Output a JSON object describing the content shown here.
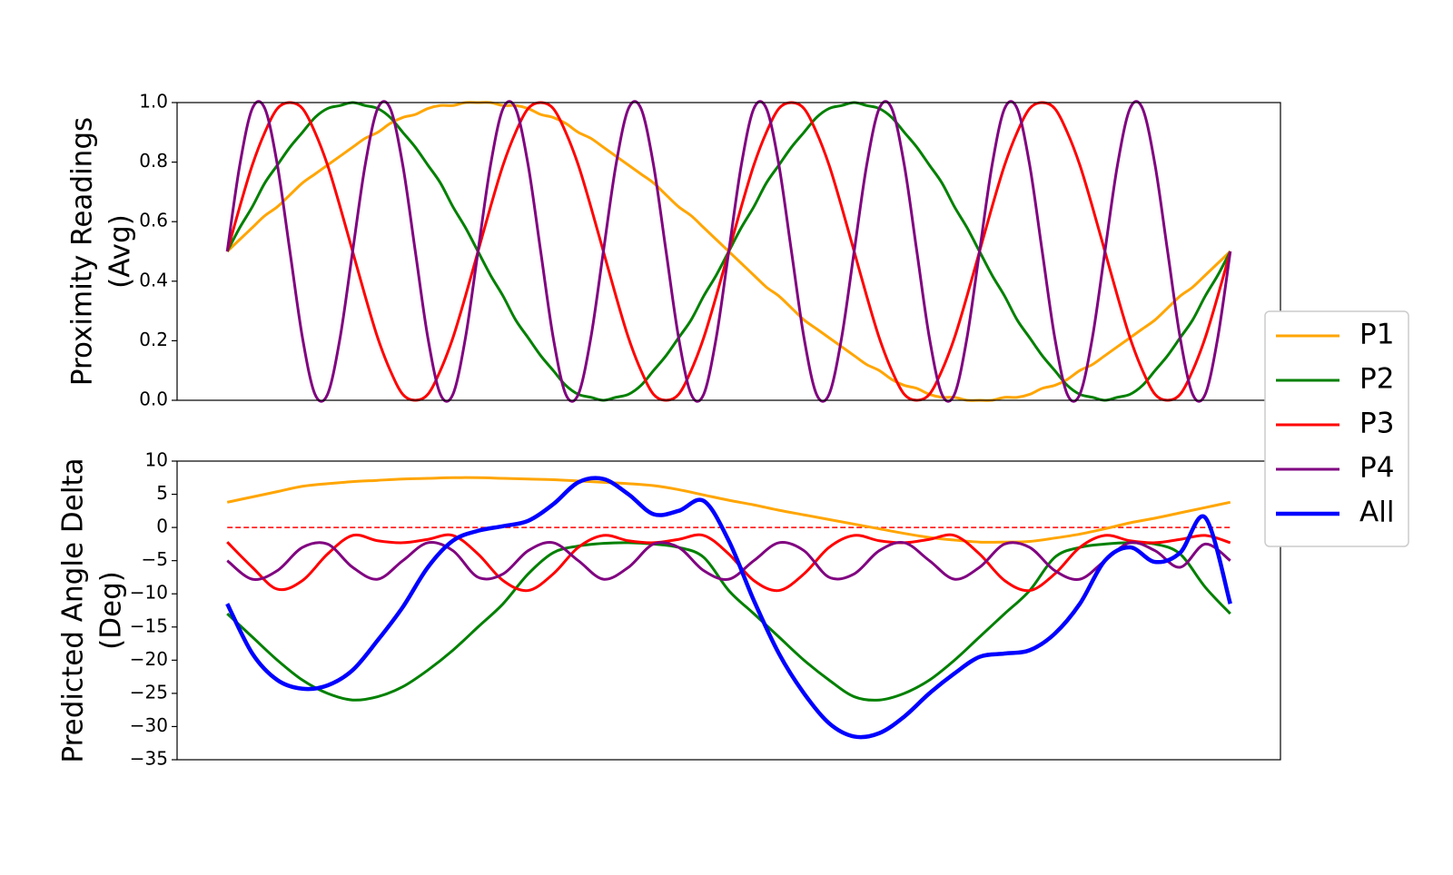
{
  "chart_data": [
    {
      "type": "line",
      "ylabel": [
        "Proximity Readings",
        "(Avg)"
      ],
      "x": [
        0,
        1,
        2,
        3,
        4,
        5,
        6,
        7,
        8,
        9,
        10,
        11,
        12,
        13,
        14,
        15,
        16,
        17,
        18,
        19,
        20,
        21,
        22,
        23,
        24,
        25,
        26,
        27,
        28,
        29,
        30,
        31,
        32,
        33,
        34,
        35,
        36,
        37,
        38,
        39,
        40,
        41,
        42,
        43,
        44,
        45,
        46,
        47,
        48,
        49,
        50,
        51,
        52,
        53,
        54,
        55,
        56,
        57,
        58,
        59,
        60,
        61,
        62,
        63,
        64,
        65,
        66,
        67,
        68,
        69,
        70,
        71,
        72,
        73,
        74,
        75,
        76,
        77,
        78,
        79,
        80
      ],
      "xlim": [
        -4,
        84
      ],
      "ylim": [
        0,
        1
      ],
      "yticks": [
        {
          "value": 0,
          "label": "0.0"
        },
        0.2,
        0.4,
        0.6,
        0.8,
        {
          "value": 1,
          "label": "1.0"
        }
      ],
      "series": [
        {
          "color": "#ffa500",
          "values": [
            0.5,
            0.54,
            0.58,
            0.62,
            0.65,
            0.69,
            0.73,
            0.76,
            0.79,
            0.82,
            0.85,
            0.88,
            0.9,
            0.93,
            0.95,
            0.96,
            0.98,
            0.99,
            0.99,
            1.0,
            1.0,
            1.0,
            0.99,
            0.99,
            0.98,
            0.96,
            0.95,
            0.93,
            0.9,
            0.88,
            0.85,
            0.82,
            0.79,
            0.76,
            0.73,
            0.69,
            0.65,
            0.62,
            0.58,
            0.54,
            0.5,
            0.46,
            0.42,
            0.38,
            0.35,
            0.31,
            0.27,
            0.24,
            0.21,
            0.18,
            0.15,
            0.12,
            0.1,
            0.07,
            0.05,
            0.04,
            0.02,
            0.01,
            0.01,
            0.0,
            0.0,
            0.0,
            0.01,
            0.01,
            0.02,
            0.04,
            0.05,
            0.07,
            0.1,
            0.12,
            0.15,
            0.18,
            0.21,
            0.24,
            0.27,
            0.31,
            0.35,
            0.38,
            0.42,
            0.46,
            0.5
          ]
        },
        {
          "color": "#008000",
          "values": [
            0.5,
            0.58,
            0.65,
            0.73,
            0.79,
            0.85,
            0.9,
            0.95,
            0.98,
            0.99,
            1.0,
            0.99,
            0.98,
            0.95,
            0.9,
            0.85,
            0.79,
            0.73,
            0.65,
            0.58,
            0.5,
            0.42,
            0.35,
            0.27,
            0.21,
            0.15,
            0.1,
            0.05,
            0.02,
            0.01,
            0.0,
            0.01,
            0.02,
            0.05,
            0.1,
            0.15,
            0.21,
            0.27,
            0.35,
            0.42,
            0.5,
            0.58,
            0.65,
            0.73,
            0.79,
            0.85,
            0.9,
            0.95,
            0.98,
            0.99,
            1.0,
            0.99,
            0.98,
            0.95,
            0.9,
            0.85,
            0.79,
            0.73,
            0.65,
            0.58,
            0.5,
            0.42,
            0.35,
            0.27,
            0.21,
            0.15,
            0.1,
            0.05,
            0.02,
            0.01,
            0.0,
            0.01,
            0.02,
            0.05,
            0.1,
            0.15,
            0.21,
            0.27,
            0.35,
            0.42,
            0.5
          ]
        },
        {
          "color": "#ff0000",
          "values": [
            0.5,
            0.65,
            0.79,
            0.9,
            0.98,
            1.0,
            0.98,
            0.9,
            0.79,
            0.65,
            0.5,
            0.35,
            0.21,
            0.1,
            0.02,
            0.0,
            0.02,
            0.1,
            0.21,
            0.35,
            0.5,
            0.65,
            0.79,
            0.9,
            0.98,
            1.0,
            0.98,
            0.9,
            0.79,
            0.65,
            0.5,
            0.35,
            0.21,
            0.1,
            0.02,
            0.0,
            0.02,
            0.1,
            0.21,
            0.35,
            0.5,
            0.65,
            0.79,
            0.9,
            0.98,
            1.0,
            0.98,
            0.9,
            0.79,
            0.65,
            0.5,
            0.35,
            0.21,
            0.1,
            0.02,
            0.0,
            0.02,
            0.1,
            0.21,
            0.35,
            0.5,
            0.65,
            0.79,
            0.9,
            0.98,
            1.0,
            0.98,
            0.9,
            0.79,
            0.65,
            0.5,
            0.35,
            0.21,
            0.1,
            0.02,
            0.0,
            0.02,
            0.1,
            0.21,
            0.35,
            0.5
          ]
        },
        {
          "color": "#800080",
          "values": [
            0.5,
            0.79,
            0.98,
            0.98,
            0.79,
            0.5,
            0.21,
            0.02,
            0.02,
            0.21,
            0.5,
            0.79,
            0.98,
            0.98,
            0.79,
            0.5,
            0.21,
            0.02,
            0.02,
            0.21,
            0.5,
            0.79,
            0.98,
            0.98,
            0.79,
            0.5,
            0.21,
            0.02,
            0.02,
            0.21,
            0.5,
            0.79,
            0.98,
            0.98,
            0.79,
            0.5,
            0.21,
            0.02,
            0.02,
            0.21,
            0.5,
            0.79,
            0.98,
            0.98,
            0.79,
            0.5,
            0.21,
            0.02,
            0.02,
            0.21,
            0.5,
            0.79,
            0.98,
            0.98,
            0.79,
            0.5,
            0.21,
            0.02,
            0.02,
            0.21,
            0.5,
            0.79,
            0.98,
            0.98,
            0.79,
            0.5,
            0.21,
            0.02,
            0.02,
            0.21,
            0.5,
            0.79,
            0.98,
            0.98,
            0.79,
            0.5,
            0.21,
            0.02,
            0.02,
            0.21,
            0.5
          ]
        }
      ]
    },
    {
      "type": "line",
      "ylabel": [
        "Predicted Angle Delta",
        "(Deg)"
      ],
      "x": [
        0,
        2,
        4,
        6,
        8,
        10,
        12,
        14,
        16,
        18,
        20,
        22,
        24,
        26,
        28,
        30,
        32,
        34,
        36,
        38,
        40,
        42,
        44,
        46,
        48,
        50,
        52,
        54,
        56,
        58,
        60,
        62,
        64,
        66,
        68,
        70,
        72,
        74,
        76,
        78,
        80
      ],
      "xlim": [
        -4,
        84
      ],
      "ylim": [
        -35,
        10
      ],
      "yticks": [
        {
          "value": -35,
          "label": "−35"
        },
        {
          "value": -30,
          "label": "−30"
        },
        {
          "value": -25,
          "label": "−25"
        },
        {
          "value": -20,
          "label": "−20"
        },
        {
          "value": -15,
          "label": "−15"
        },
        {
          "value": -10,
          "label": "−10"
        },
        {
          "value": -5,
          "label": "−5"
        },
        0,
        5,
        10
      ],
      "hline": {
        "value": 0,
        "color": "#ff0000",
        "dashed": true
      },
      "legend": "outside right",
      "series": [
        {
          "name": "P1",
          "color": "#ffa500",
          "values": [
            3.8,
            4.6,
            5.4,
            6.2,
            6.6,
            6.9,
            7.1,
            7.3,
            7.4,
            7.5,
            7.5,
            7.4,
            7.3,
            7.2,
            7.0,
            6.8,
            6.6,
            6.3,
            5.7,
            4.9,
            4.1,
            3.4,
            2.6,
            1.9,
            1.2,
            0.5,
            -0.2,
            -0.9,
            -1.5,
            -1.9,
            -2.2,
            -2.2,
            -2.1,
            -1.6,
            -1.0,
            -0.2,
            0.7,
            1.4,
            2.2,
            3.0,
            3.8
          ]
        },
        {
          "name": "P2",
          "color": "#008000",
          "values": [
            -13,
            -16.5,
            -20,
            -23,
            -25,
            -26,
            -25.5,
            -24,
            -21.5,
            -18.5,
            -15,
            -11.5,
            -7,
            -3.8,
            -2.8,
            -2.4,
            -2.3,
            -2.5,
            -3,
            -4.5,
            -9.5,
            -13,
            -16.5,
            -20,
            -23,
            -25.5,
            -26,
            -25,
            -23,
            -20,
            -16.5,
            -13,
            -9.5,
            -4.5,
            -3,
            -2.5,
            -2.3,
            -2.5,
            -4,
            -9,
            -13
          ]
        },
        {
          "name": "P3",
          "color": "#ff0000",
          "values": [
            -2.2,
            -6,
            -9.3,
            -8,
            -4,
            -1.2,
            -2,
            -2.3,
            -1.8,
            -1.2,
            -4,
            -8,
            -9.5,
            -7,
            -3,
            -1.2,
            -2,
            -2.3,
            -1.8,
            -1.2,
            -4,
            -8,
            -9.5,
            -7,
            -3,
            -1.2,
            -2,
            -2.3,
            -1.8,
            -1.2,
            -4,
            -8,
            -9.5,
            -7,
            -3,
            -1.2,
            -2,
            -2.3,
            -1.8,
            -1.2,
            -2.3
          ]
        },
        {
          "name": "P4",
          "color": "#800080",
          "values": [
            -5,
            -7.8,
            -6.5,
            -3,
            -2.5,
            -6,
            -7.8,
            -5,
            -2.3,
            -3.5,
            -7.5,
            -7,
            -3.5,
            -2.3,
            -5,
            -7.8,
            -6,
            -2.5,
            -3,
            -6.5,
            -7.8,
            -5,
            -2.3,
            -3.5,
            -7.5,
            -7,
            -3.5,
            -2.3,
            -5,
            -7.8,
            -6,
            -2.5,
            -3,
            -6.5,
            -7.8,
            -5,
            -2.3,
            -3.5,
            -6,
            -2.5,
            -5
          ]
        },
        {
          "name": "All",
          "color": "#0000ff",
          "width": 4.5,
          "values": [
            -11.5,
            -19,
            -23,
            -24.3,
            -23.8,
            -21.5,
            -17,
            -12,
            -6,
            -2,
            -0.5,
            0.2,
            1,
            3.5,
            6.8,
            7.3,
            5,
            2,
            2.5,
            4,
            -2,
            -11,
            -19,
            -25,
            -29.5,
            -31.5,
            -31,
            -28.5,
            -25,
            -22,
            -19.5,
            -19,
            -18.5,
            -16,
            -11.5,
            -5,
            -3,
            -5.2,
            -3.8,
            1.5,
            -11.5
          ]
        }
      ]
    }
  ]
}
